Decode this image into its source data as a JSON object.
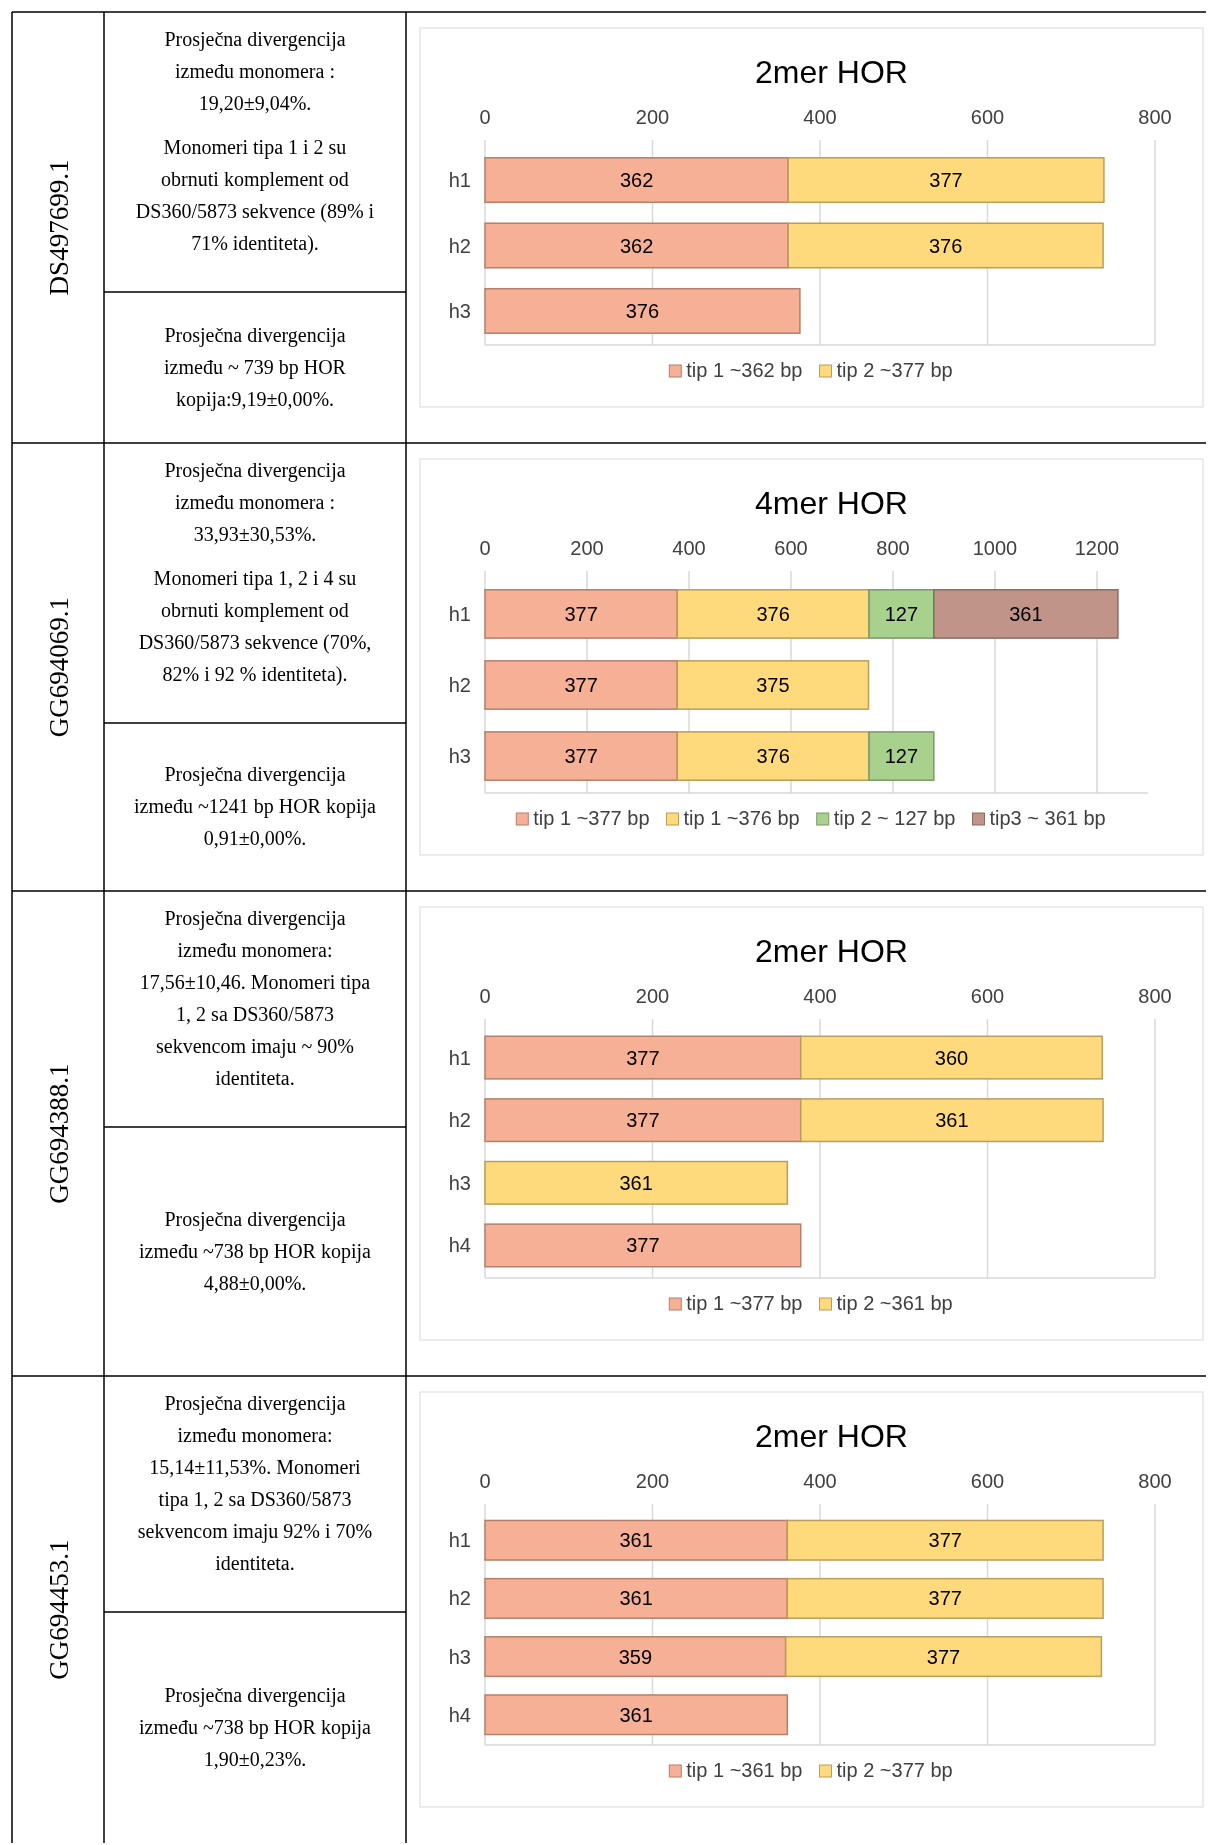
{
  "chart_data": [
    {
      "type": "other",
      "title": "DS497699.1",
      "annotations": [
        "Prosječna divergencija između monomera : 19,20±9,04%.",
        "Monomeri tipa 1 i 2 su obrnuti komplement od DS360/5873 sekvence (89% i 71% identiteta).",
        "Prosječna divergencija između ~ 739 bp HOR kopija:9,19±0,00%."
      ]
    },
    {
      "type": "bar",
      "orientation": "horizontal",
      "stacked": true,
      "title": "2mer HOR",
      "categories": [
        "h1",
        "h2",
        "h3"
      ],
      "xlim": [
        0,
        800
      ],
      "xticks": [
        0,
        200,
        400,
        600,
        800
      ],
      "grid": "x",
      "legend": "bottom",
      "data_labels": true,
      "series": [
        {
          "name": "tip 1 ~362 bp",
          "color": "#f5b095",
          "values": [
            362,
            362,
            376
          ]
        },
        {
          "name": "tip 2 ~377 bp",
          "color": "#ffda7d",
          "values": [
            377,
            376,
            null
          ]
        }
      ]
    },
    {
      "type": "other",
      "title": "GG694069.1",
      "annotations": [
        "Prosječna divergencija između monomera : 33,93±30,53%.",
        "Monomeri tipa 1, 2 i 4 su obrnuti komplement od DS360/5873 sekvence (70%, 82% i 92 % identiteta).",
        "Prosječna divergencija između ~1241 bp HOR kopija 0,91±0,00%."
      ]
    },
    {
      "type": "bar",
      "orientation": "horizontal",
      "stacked": true,
      "title": "4mer HOR",
      "categories": [
        "h1",
        "h2",
        "h3"
      ],
      "xlim": [
        0,
        1300
      ],
      "xticks": [
        0,
        200,
        400,
        600,
        800,
        1000,
        1200
      ],
      "grid": "x",
      "legend": "bottom",
      "data_labels": true,
      "series": [
        {
          "name": "tip 1 ~377 bp",
          "color": "#f5b095",
          "values": [
            377,
            377,
            377
          ]
        },
        {
          "name": "tip 1 ~376 bp",
          "color": "#ffda7d",
          "values": [
            376,
            375,
            376
          ]
        },
        {
          "name": "tip 2 ~ 127 bp",
          "color": "#a9d18e",
          "values": [
            127,
            null,
            127
          ]
        },
        {
          "name": "tip3 ~ 361 bp",
          "color": "#c09488",
          "values": [
            361,
            null,
            null
          ]
        }
      ]
    },
    {
      "type": "other",
      "title": "GG694388.1",
      "annotations": [
        "Prosječna divergencija između monomera: 17,56±10,46. Monomeri tipa 1, 2 sa DS360/5873 sekvencom imaju ~ 90% identiteta.",
        "Prosječna divergencija između ~738 bp HOR kopija 4,88±0,00%."
      ]
    },
    {
      "type": "bar",
      "orientation": "horizontal",
      "stacked": true,
      "title": "2mer HOR",
      "categories": [
        "h1",
        "h2",
        "h3",
        "h4"
      ],
      "xlim": [
        0,
        800
      ],
      "xticks": [
        0,
        200,
        400,
        600,
        800
      ],
      "grid": "x",
      "legend": "bottom",
      "data_labels": true,
      "series": [
        {
          "name": "tip 1 ~377 bp",
          "color": "#f5b095",
          "values": [
            377,
            377,
            null,
            377
          ]
        },
        {
          "name": "tip 2 ~361 bp",
          "color": "#ffda7d",
          "values": [
            360,
            361,
            361,
            null
          ]
        }
      ]
    },
    {
      "type": "other",
      "title": "GG694453.1",
      "annotations": [
        "Prosječna divergencija između monomera: 15,14±11,53%. Monomeri tipa 1, 2 sa DS360/5873 sekvencom imaju 92% i 70% identiteta.",
        "Prosječna divergencija između ~738 bp HOR kopija 1,90±0,23%."
      ]
    },
    {
      "type": "bar",
      "orientation": "horizontal",
      "stacked": true,
      "title": "2mer HOR",
      "categories": [
        "h1",
        "h2",
        "h3",
        "h4"
      ],
      "xlim": [
        0,
        800
      ],
      "xticks": [
        0,
        200,
        400,
        600,
        800
      ],
      "grid": "x",
      "legend": "bottom",
      "data_labels": true,
      "series": [
        {
          "name": "tip 1 ~361 bp",
          "color": "#f5b095",
          "values": [
            361,
            361,
            359,
            361
          ]
        },
        {
          "name": "tip 2 ~377 bp",
          "color": "#ffda7d",
          "values": [
            377,
            377,
            377,
            null
          ]
        }
      ]
    }
  ]
}
